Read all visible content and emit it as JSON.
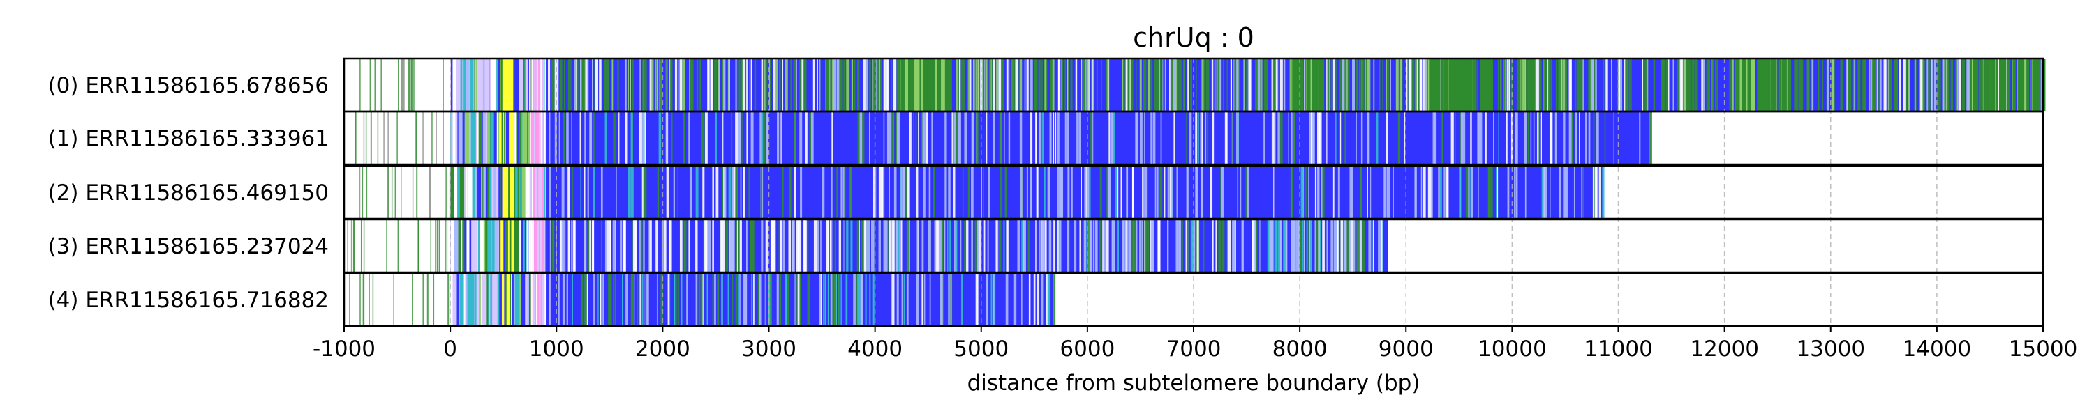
{
  "chart_data": {
    "type": "bar",
    "orientation": "horizontal",
    "title": "chrUq : 0",
    "xlabel": "distance from subtelomere boundary (bp)",
    "ylabel": "",
    "xlim": [
      -1000,
      15000
    ],
    "xticks": [
      -1000,
      0,
      1000,
      2000,
      3000,
      4000,
      5000,
      6000,
      7000,
      8000,
      9000,
      10000,
      11000,
      12000,
      13000,
      14000,
      15000
    ],
    "grid": "vertical dashed",
    "reads": [
      {
        "label": "(0) ERR11586165.678656",
        "start": -1000,
        "end": 15000
      },
      {
        "label": "(1) ERR11586165.333961",
        "start": -1000,
        "end": 11300
      },
      {
        "label": "(2) ERR11586165.469150",
        "start": -1000,
        "end": 10850
      },
      {
        "label": "(3) ERR11586165.237024",
        "start": -1000,
        "end": 8830
      },
      {
        "label": "(4) ERR11586165.716882",
        "start": -1000,
        "end": 5680
      }
    ],
    "colors": {
      "main": "#3333ff",
      "green": "#2e8b2e",
      "light_green": "#8fcf6a",
      "yellow": "#ffff33",
      "pink": "#ff99ee",
      "light_blue": "#aab8ff",
      "lavender": "#d8c8ff",
      "cyan": "#33bbcc",
      "grid": "#b0b0b0"
    }
  }
}
